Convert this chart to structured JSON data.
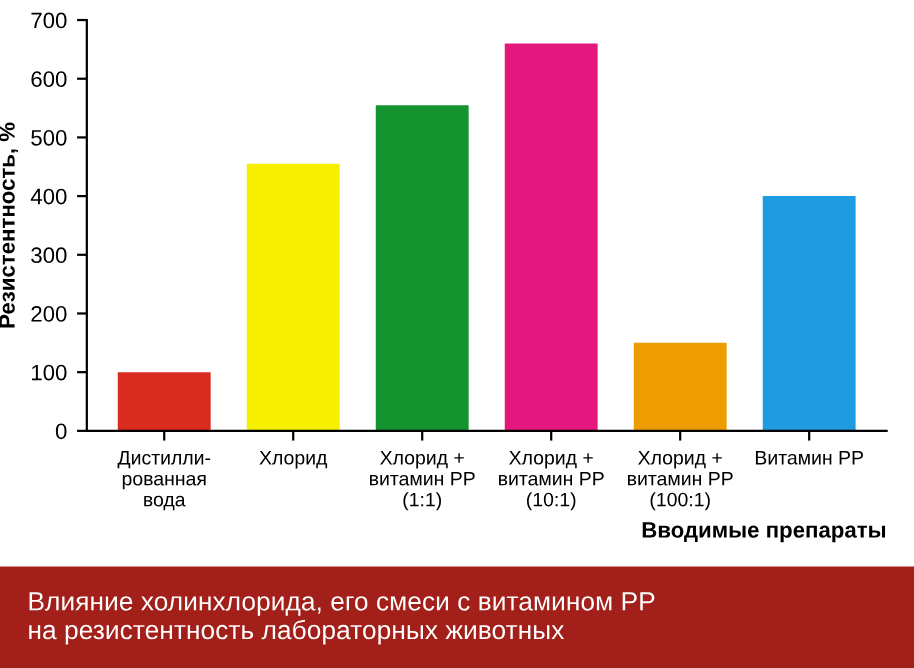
{
  "chart_data": {
    "type": "bar",
    "title": "Влияние холинхлорида, его смеси с витамином PP\nна резистентность лабораторных животных",
    "xlabel": "Вводимые препараты",
    "ylabel": "Резистентность, %",
    "categories": [
      "Дистилли-\nрованная\nвода",
      "Хлорид",
      "Хлорид +\nвитамин PP\n(1:1)",
      "Хлорид +\nвитамин PP\n(10:1)",
      "Хлорид +\nвитамин PP\n(100:1)",
      "Витамин PP"
    ],
    "values": [
      100,
      455,
      555,
      660,
      150,
      400
    ],
    "colors": [
      "#d92b1f",
      "#f7ef00",
      "#15932f",
      "#e4177f",
      "#ee9d00",
      "#1f9be0"
    ],
    "ylim": [
      0,
      700
    ],
    "yticks": [
      0,
      100,
      200,
      300,
      400,
      500,
      600,
      700
    ],
    "grid": false,
    "legend": false
  }
}
